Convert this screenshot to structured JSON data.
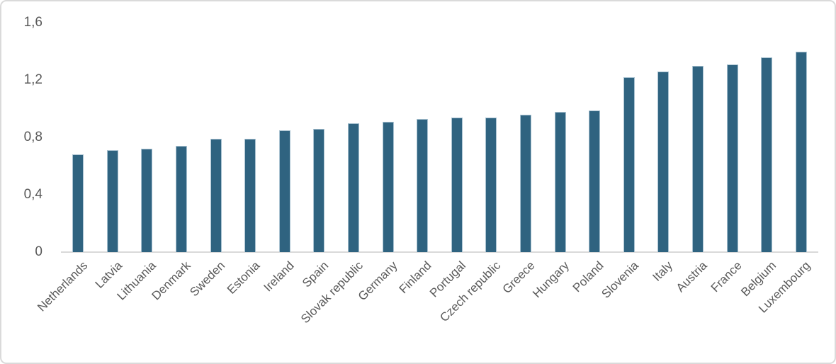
{
  "figure": {
    "background_color": "#FFFFFF",
    "border_color": "#DADADA"
  },
  "chart_data": {
    "type": "bar",
    "title": "",
    "xlabel": "",
    "ylabel": "",
    "categories": [
      "Netherlands",
      "Latvia",
      "Lithuania",
      "Denmark",
      "Sweden",
      "Estonia",
      "Ireland",
      "Spain",
      "Slovak republic",
      "Germany",
      "Finland",
      "Portugal",
      "Czech republic",
      "Greece",
      "Hungary",
      "Poland",
      "Slovenia",
      "Italy",
      "Austria",
      "France",
      "Belgium",
      "Luxembourg"
    ],
    "values": [
      0.68,
      0.71,
      0.72,
      0.74,
      0.79,
      0.79,
      0.85,
      0.86,
      0.9,
      0.91,
      0.93,
      0.94,
      0.94,
      0.96,
      0.98,
      0.99,
      1.22,
      1.26,
      1.3,
      1.31,
      1.36,
      1.4
    ],
    "ylim": [
      0,
      1.6
    ],
    "yticks": [
      0,
      0.4,
      0.8,
      1.2,
      1.6
    ],
    "ytick_labels": [
      "0",
      "0,4",
      "0,8",
      "1,2",
      "1,6"
    ],
    "decimal_separator": ",",
    "grid": false,
    "legend": false,
    "x_label_rotation_deg": 45,
    "bar_color": "#2F6380",
    "bar_edge_color": "#A9C2D1",
    "axis_line_color": "#D9D9D9",
    "tick_label_color": "#595959"
  }
}
